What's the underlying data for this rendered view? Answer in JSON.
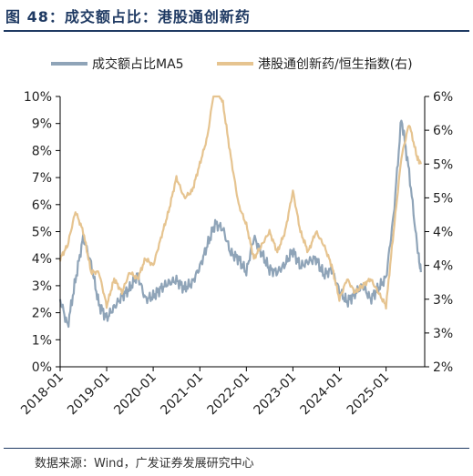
{
  "figure": {
    "title": "图 48：成交额占比：港股通创新药",
    "source": "数据来源：Wind，广发证券发展研究中心"
  },
  "colors": {
    "series_volume": "#8fa4b8",
    "series_index": "#e6c490",
    "title": "#1f3a63",
    "axis": "#000000"
  },
  "chart_data": {
    "type": "line",
    "legend_position": "top",
    "grid": false,
    "x_tick_labels": [
      "2018-01",
      "2019-01",
      "2020-01",
      "2021-01",
      "2022-01",
      "2023-01",
      "2024-01",
      "2025-01"
    ],
    "x_range": [
      "2018-01-01",
      "2025-10-31"
    ],
    "y_left": {
      "range": [
        0,
        10
      ],
      "tick_labels": [
        "0%",
        "1%",
        "2%",
        "3%",
        "4%",
        "5%",
        "6%",
        "7%",
        "8%",
        "9%",
        "10%"
      ]
    },
    "y_right": {
      "range": [
        2,
        6
      ],
      "tick_labels": [
        "2%",
        "3%",
        "3%",
        "4%",
        "4%",
        "5%",
        "5%",
        "6%",
        "6%"
      ]
    },
    "series": [
      {
        "name": "成交额占比MA5",
        "axis": "left",
        "unit": "%",
        "points": [
          [
            "2018-01",
            2.5
          ],
          [
            "2018-03",
            1.5
          ],
          [
            "2018-05",
            3.2
          ],
          [
            "2018-07",
            4.8
          ],
          [
            "2018-09",
            3.8
          ],
          [
            "2018-11",
            2.3
          ],
          [
            "2019-01",
            1.8
          ],
          [
            "2019-03",
            2.2
          ],
          [
            "2019-05",
            2.6
          ],
          [
            "2019-07",
            2.9
          ],
          [
            "2019-09",
            3.4
          ],
          [
            "2019-11",
            2.5
          ],
          [
            "2020-01",
            2.6
          ],
          [
            "2020-03",
            2.9
          ],
          [
            "2020-05",
            3.1
          ],
          [
            "2020-07",
            3.2
          ],
          [
            "2020-09",
            2.9
          ],
          [
            "2020-11",
            3.1
          ],
          [
            "2021-01",
            3.7
          ],
          [
            "2021-03",
            4.5
          ],
          [
            "2021-05",
            5.3
          ],
          [
            "2021-07",
            5.1
          ],
          [
            "2021-09",
            4.2
          ],
          [
            "2021-11",
            4.0
          ],
          [
            "2022-01",
            3.5
          ],
          [
            "2022-03",
            4.8
          ],
          [
            "2022-05",
            4.2
          ],
          [
            "2022-07",
            3.6
          ],
          [
            "2022-09",
            3.5
          ],
          [
            "2022-11",
            3.8
          ],
          [
            "2023-01",
            4.3
          ],
          [
            "2023-03",
            3.7
          ],
          [
            "2023-05",
            3.9
          ],
          [
            "2023-07",
            4.0
          ],
          [
            "2023-09",
            3.4
          ],
          [
            "2023-11",
            3.6
          ],
          [
            "2024-01",
            2.8
          ],
          [
            "2024-03",
            2.4
          ],
          [
            "2024-05",
            2.7
          ],
          [
            "2024-07",
            3.0
          ],
          [
            "2024-09",
            2.5
          ],
          [
            "2024-11",
            2.9
          ],
          [
            "2025-01",
            3.3
          ],
          [
            "2025-03",
            5.6
          ],
          [
            "2025-05",
            9.2
          ],
          [
            "2025-07",
            7.2
          ],
          [
            "2025-09",
            4.5
          ],
          [
            "2025-10",
            3.5
          ]
        ]
      },
      {
        "name": "港股通创新药/恒生指数(右)",
        "axis": "right",
        "unit": "%",
        "points": [
          [
            "2018-01",
            3.6
          ],
          [
            "2018-03",
            3.8
          ],
          [
            "2018-05",
            4.3
          ],
          [
            "2018-07",
            4.0
          ],
          [
            "2018-09",
            3.4
          ],
          [
            "2018-11",
            3.4
          ],
          [
            "2019-01",
            2.9
          ],
          [
            "2019-03",
            3.3
          ],
          [
            "2019-05",
            3.1
          ],
          [
            "2019-07",
            3.4
          ],
          [
            "2019-09",
            3.3
          ],
          [
            "2019-11",
            3.6
          ],
          [
            "2020-01",
            3.5
          ],
          [
            "2020-03",
            3.9
          ],
          [
            "2020-05",
            4.3
          ],
          [
            "2020-07",
            4.8
          ],
          [
            "2020-09",
            4.5
          ],
          [
            "2020-11",
            4.6
          ],
          [
            "2021-01",
            5.0
          ],
          [
            "2021-03",
            5.4
          ],
          [
            "2021-05",
            6.2
          ],
          [
            "2021-07",
            5.9
          ],
          [
            "2021-09",
            5.1
          ],
          [
            "2021-11",
            4.4
          ],
          [
            "2022-01",
            4.1
          ],
          [
            "2022-03",
            3.6
          ],
          [
            "2022-05",
            3.8
          ],
          [
            "2022-07",
            4.0
          ],
          [
            "2022-09",
            3.7
          ],
          [
            "2022-11",
            4.0
          ],
          [
            "2023-01",
            4.6
          ],
          [
            "2023-03",
            4.0
          ],
          [
            "2023-05",
            3.7
          ],
          [
            "2023-07",
            4.0
          ],
          [
            "2023-09",
            3.8
          ],
          [
            "2023-11",
            3.5
          ],
          [
            "2024-01",
            3.0
          ],
          [
            "2024-03",
            3.3
          ],
          [
            "2024-05",
            3.1
          ],
          [
            "2024-07",
            3.2
          ],
          [
            "2024-09",
            3.3
          ],
          [
            "2024-11",
            3.1
          ],
          [
            "2025-01",
            2.9
          ],
          [
            "2025-03",
            4.0
          ],
          [
            "2025-05",
            5.1
          ],
          [
            "2025-07",
            5.6
          ],
          [
            "2025-09",
            5.1
          ],
          [
            "2025-10",
            5.0
          ]
        ]
      }
    ]
  }
}
